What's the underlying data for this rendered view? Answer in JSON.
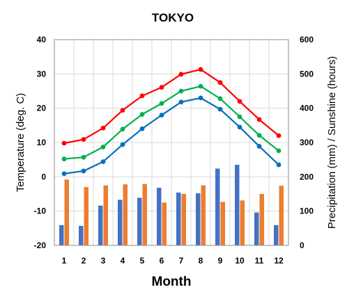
{
  "chart_data": {
    "type": "line",
    "title": "TOKYO",
    "xlabel": "Month",
    "ylabel": "Temperature (deg. C)",
    "ylabel_right": "Precipitation (mm) / Sunshine (hours)",
    "categories": [
      "1",
      "2",
      "3",
      "4",
      "5",
      "6",
      "7",
      "8",
      "9",
      "10",
      "11",
      "12"
    ],
    "ylim": [
      -20,
      40
    ],
    "yticks": [
      "-20",
      "-10",
      "0",
      "10",
      "20",
      "30",
      "40"
    ],
    "ylim_right": [
      0,
      600
    ],
    "yticks_right": [
      "0",
      "100",
      "200",
      "300",
      "400",
      "500",
      "600"
    ],
    "grid": true,
    "line_series": [
      {
        "color": "#ff0000",
        "values": [
          9.8,
          10.9,
          14.2,
          19.4,
          23.6,
          26.1,
          29.9,
          31.3,
          27.5,
          22.0,
          16.7,
          12.0
        ]
      },
      {
        "color": "#00b050",
        "values": [
          5.2,
          5.7,
          8.7,
          13.9,
          18.2,
          21.4,
          25.0,
          26.4,
          22.8,
          17.5,
          12.1,
          7.6
        ]
      },
      {
        "color": "#0070c0",
        "values": [
          0.9,
          1.7,
          4.4,
          9.4,
          14.0,
          18.0,
          21.8,
          23.0,
          19.7,
          14.5,
          8.9,
          3.5
        ]
      }
    ],
    "bar_series": [
      {
        "color": "#4472c4",
        "values": [
          59,
          57,
          116,
          133,
          139,
          168,
          154,
          152,
          224,
          235,
          96,
          59
        ]
      },
      {
        "color": "#ed7d31",
        "values": [
          192,
          170,
          175,
          178,
          179,
          125,
          150,
          175,
          127,
          131,
          150,
          174
        ]
      }
    ]
  }
}
